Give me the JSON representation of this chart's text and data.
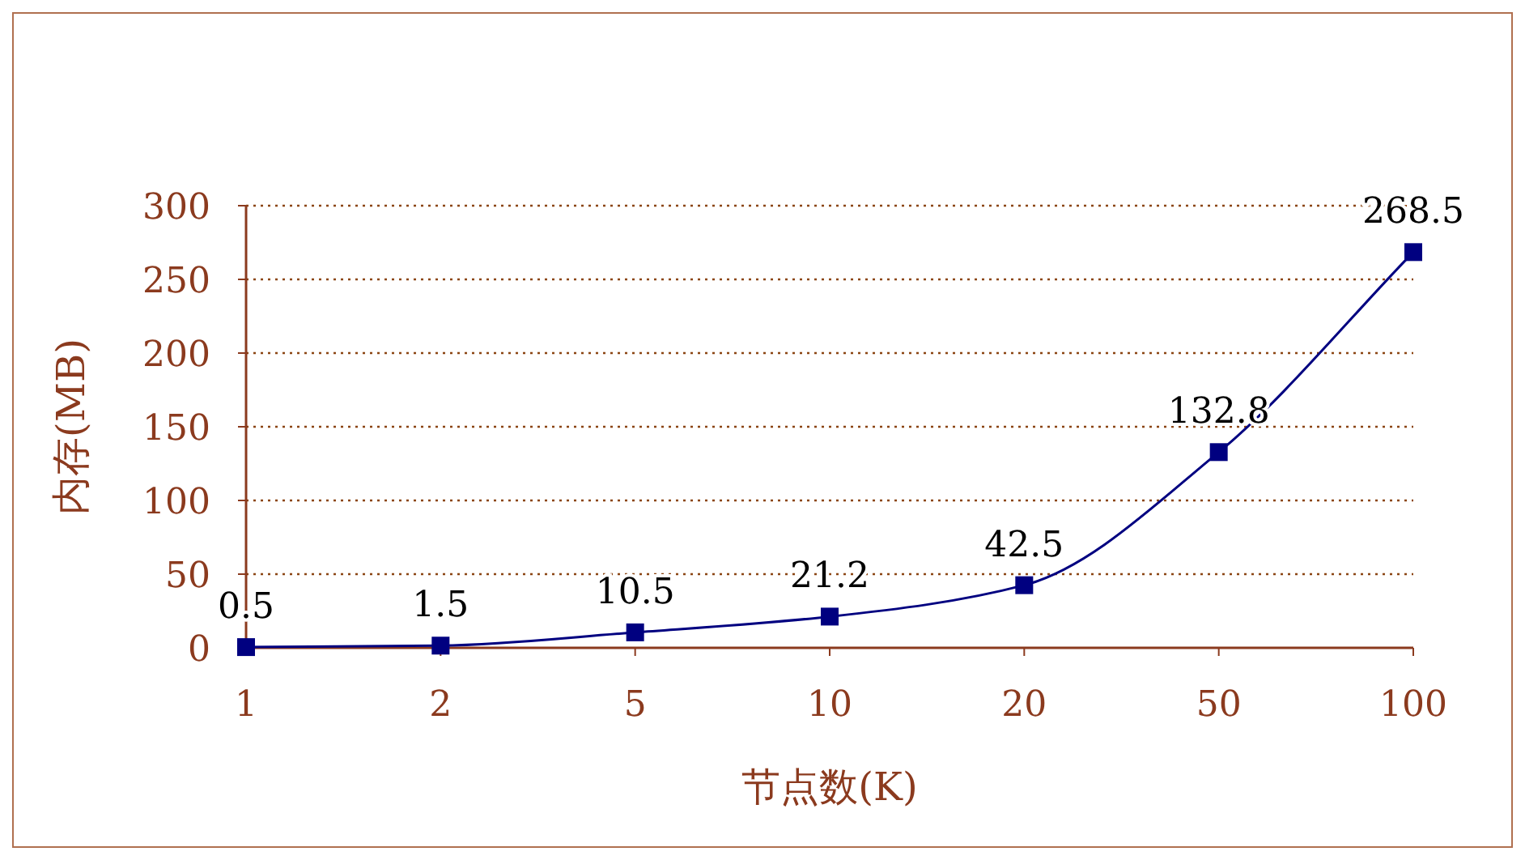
{
  "chart_data": {
    "type": "line",
    "xlabel": "节点数(K)",
    "ylabel": "内存(MB)",
    "categories": [
      "1",
      "2",
      "5",
      "10",
      "20",
      "50",
      "100"
    ],
    "series": [
      {
        "color": "#000080",
        "values": [
          0.5,
          1.5,
          10.5,
          21.2,
          42.5,
          132.8,
          268.5
        ]
      }
    ],
    "ylim": [
      0,
      300
    ],
    "yticks": [
      0,
      50,
      100,
      150,
      200,
      250,
      300
    ],
    "grid": "y",
    "marker": "square",
    "line_style": "solid",
    "data_labels": true
  }
}
